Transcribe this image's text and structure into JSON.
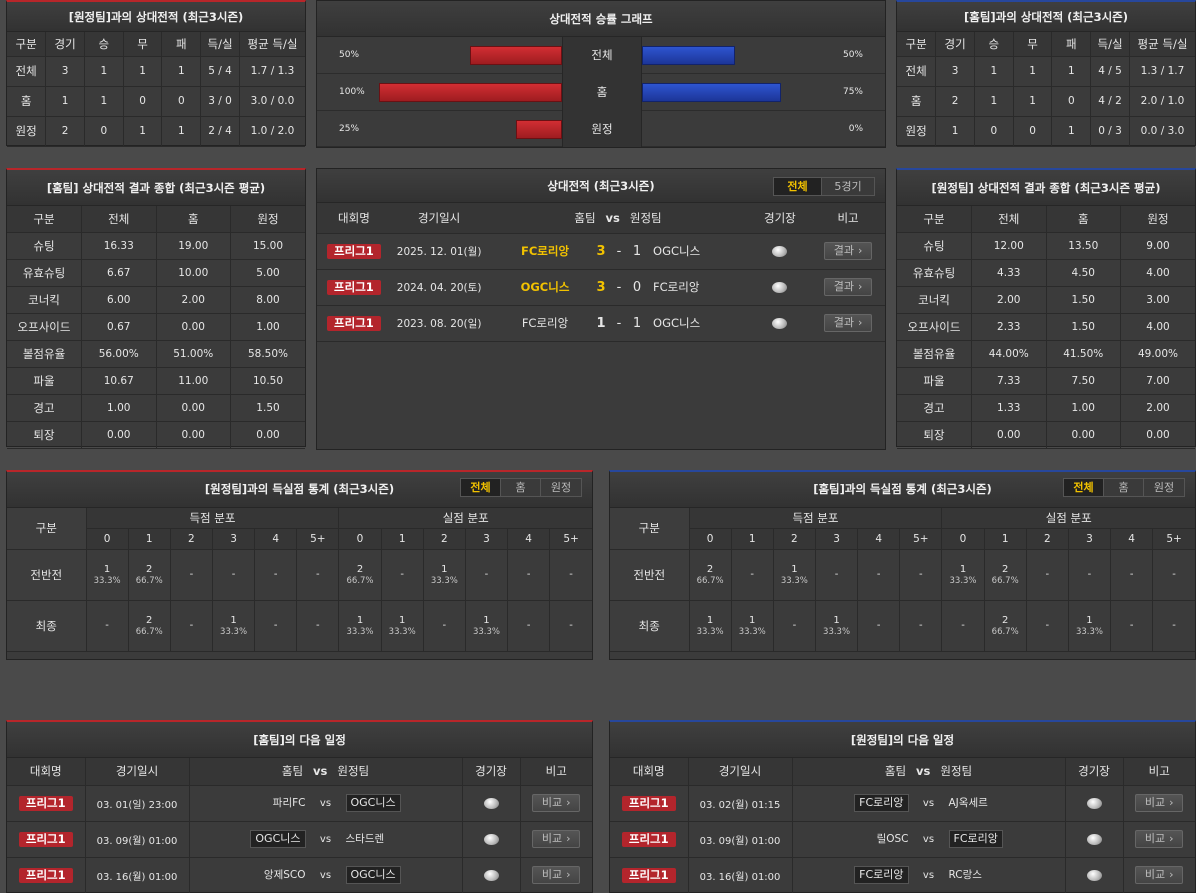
{
  "away_h2h": {
    "title": "[원정팀]과의 상대전적 (최근3시즌)",
    "headers": [
      "구분",
      "경기",
      "승",
      "무",
      "패",
      "득/실",
      "평균 득/실"
    ],
    "rows": [
      [
        "전체",
        "3",
        "1",
        "1",
        "1",
        "5 / 4",
        "1.7 / 1.3"
      ],
      [
        "홈",
        "1",
        "1",
        "0",
        "0",
        "3 / 0",
        "3.0 / 0.0"
      ],
      [
        "원정",
        "2",
        "0",
        "1",
        "1",
        "2 / 4",
        "1.0 / 2.0"
      ]
    ]
  },
  "graph": {
    "title": "상대전적 승률 그래프",
    "rows": [
      {
        "label": "전체",
        "left": "50%",
        "right": "50%",
        "lv": 50,
        "rv": 50
      },
      {
        "label": "홈",
        "left": "100%",
        "right": "75%",
        "lv": 100,
        "rv": 75
      },
      {
        "label": "원정",
        "left": "25%",
        "right": "0%",
        "lv": 25,
        "rv": 0
      }
    ]
  },
  "home_h2h": {
    "title": "[홈팀]과의 상대전적 (최근3시즌)",
    "headers": [
      "구분",
      "경기",
      "승",
      "무",
      "패",
      "득/실",
      "평균 득/실"
    ],
    "rows": [
      [
        "전체",
        "3",
        "1",
        "1",
        "1",
        "4 / 5",
        "1.3 / 1.7"
      ],
      [
        "홈",
        "2",
        "1",
        "1",
        "0",
        "4 / 2",
        "2.0 / 1.0"
      ],
      [
        "원정",
        "1",
        "0",
        "0",
        "1",
        "0 / 3",
        "0.0 / 3.0"
      ]
    ]
  },
  "home_summary": {
    "title": "[홈팀] 상대전적 결과 종합 (최근3시즌 평균)",
    "headers": [
      "구분",
      "전체",
      "홈",
      "원정"
    ],
    "rows": [
      [
        "슈팅",
        "16.33",
        "19.00",
        "15.00"
      ],
      [
        "유효슈팅",
        "6.67",
        "10.00",
        "5.00"
      ],
      [
        "코너킥",
        "6.00",
        "2.00",
        "8.00"
      ],
      [
        "오프사이드",
        "0.67",
        "0.00",
        "1.00"
      ],
      [
        "볼점유율",
        "56.00%",
        "51.00%",
        "58.50%"
      ],
      [
        "파울",
        "10.67",
        "11.00",
        "10.50"
      ],
      [
        "경고",
        "1.00",
        "0.00",
        "1.50"
      ],
      [
        "퇴장",
        "0.00",
        "0.00",
        "0.00"
      ]
    ]
  },
  "h2h_list": {
    "title": "상대전적 (최근3시즌)",
    "tabs": [
      "전체",
      "5경기"
    ],
    "headers": {
      "league": "대회명",
      "date": "경기일시",
      "home": "홈팀",
      "vs": "vs",
      "away": "원정팀",
      "stadium": "경기장",
      "note": "비고"
    },
    "rows": [
      {
        "league": "프리그1",
        "date": "2025. 12. 01(월)",
        "home": "FC로리앙",
        "hs": "3",
        "dash": "-",
        "as": "1",
        "away": "OGC니스",
        "btn": "결과",
        "win": "home"
      },
      {
        "league": "프리그1",
        "date": "2024. 04. 20(토)",
        "home": "OGC니스",
        "hs": "3",
        "dash": "-",
        "as": "0",
        "away": "FC로리앙",
        "btn": "결과",
        "win": "home"
      },
      {
        "league": "프리그1",
        "date": "2023. 08. 20(일)",
        "home": "FC로리앙",
        "hs": "1",
        "dash": "-",
        "as": "1",
        "away": "OGC니스",
        "btn": "결과",
        "win": "none"
      }
    ]
  },
  "away_summary": {
    "title": "[원정팀] 상대전적 결과 종합 (최근3시즌 평균)",
    "headers": [
      "구분",
      "전체",
      "홈",
      "원정"
    ],
    "rows": [
      [
        "슈팅",
        "12.00",
        "13.50",
        "9.00"
      ],
      [
        "유효슈팅",
        "4.33",
        "4.50",
        "4.00"
      ],
      [
        "코너킥",
        "2.00",
        "1.50",
        "3.00"
      ],
      [
        "오프사이드",
        "2.33",
        "1.50",
        "4.00"
      ],
      [
        "볼점유율",
        "44.00%",
        "41.50%",
        "49.00%"
      ],
      [
        "파울",
        "7.33",
        "7.50",
        "7.00"
      ],
      [
        "경고",
        "1.33",
        "1.00",
        "2.00"
      ],
      [
        "퇴장",
        "0.00",
        "0.00",
        "0.00"
      ]
    ]
  },
  "away_goals": {
    "title": "[원정팀]과의 득실점 통계 (최근3시즌)",
    "tabs": [
      "전체",
      "홈",
      "원정"
    ],
    "col_label": "구분",
    "scored": "득점 분포",
    "conceded": "실점 분포",
    "buckets": [
      "0",
      "1",
      "2",
      "3",
      "4",
      "5+"
    ],
    "rows": [
      {
        "label": "전반전",
        "cells": [
          [
            "1",
            "33.3%"
          ],
          [
            "2",
            "66.7%"
          ],
          [
            "-",
            ""
          ],
          [
            "-",
            ""
          ],
          [
            "-",
            ""
          ],
          [
            "-",
            ""
          ],
          [
            "2",
            "66.7%"
          ],
          [
            "-",
            ""
          ],
          [
            "1",
            "33.3%"
          ],
          [
            "-",
            ""
          ],
          [
            "-",
            ""
          ],
          [
            "-",
            ""
          ]
        ]
      },
      {
        "label": "최종",
        "cells": [
          [
            "-",
            ""
          ],
          [
            "2",
            "66.7%"
          ],
          [
            "-",
            ""
          ],
          [
            "1",
            "33.3%"
          ],
          [
            "-",
            ""
          ],
          [
            "-",
            ""
          ],
          [
            "1",
            "33.3%"
          ],
          [
            "1",
            "33.3%"
          ],
          [
            "-",
            ""
          ],
          [
            "1",
            "33.3%"
          ],
          [
            "-",
            ""
          ],
          [
            "-",
            ""
          ]
        ]
      }
    ]
  },
  "home_goals": {
    "title": "[홈팀]과의 득실점 통계 (최근3시즌)",
    "tabs": [
      "전체",
      "홈",
      "원정"
    ],
    "col_label": "구분",
    "scored": "득점 분포",
    "conceded": "실점 분포",
    "buckets": [
      "0",
      "1",
      "2",
      "3",
      "4",
      "5+"
    ],
    "rows": [
      {
        "label": "전반전",
        "cells": [
          [
            "2",
            "66.7%"
          ],
          [
            "-",
            ""
          ],
          [
            "1",
            "33.3%"
          ],
          [
            "-",
            ""
          ],
          [
            "-",
            ""
          ],
          [
            "-",
            ""
          ],
          [
            "1",
            "33.3%"
          ],
          [
            "2",
            "66.7%"
          ],
          [
            "-",
            ""
          ],
          [
            "-",
            ""
          ],
          [
            "-",
            ""
          ],
          [
            "-",
            ""
          ]
        ]
      },
      {
        "label": "최종",
        "cells": [
          [
            "1",
            "33.3%"
          ],
          [
            "1",
            "33.3%"
          ],
          [
            "-",
            ""
          ],
          [
            "1",
            "33.3%"
          ],
          [
            "-",
            ""
          ],
          [
            "-",
            ""
          ],
          [
            "-",
            ""
          ],
          [
            "2",
            "66.7%"
          ],
          [
            "-",
            ""
          ],
          [
            "1",
            "33.3%"
          ],
          [
            "-",
            ""
          ],
          [
            "-",
            ""
          ]
        ]
      }
    ]
  },
  "home_next": {
    "title": "[홈팀]의 다음 일정",
    "headers": {
      "league": "대회명",
      "date": "경기일시",
      "home": "홈팀",
      "vs": "vs",
      "away": "원정팀",
      "stadium": "경기장",
      "note": "비고"
    },
    "rows": [
      {
        "league": "프리그1",
        "date": "03. 01(일) 23:00",
        "home": "파리FC",
        "vs": "vs",
        "away": "OGC니스",
        "btn": "비교",
        "box": "away"
      },
      {
        "league": "프리그1",
        "date": "03. 09(월) 01:00",
        "home": "OGC니스",
        "vs": "vs",
        "away": "스타드렌",
        "btn": "비교",
        "box": "home"
      },
      {
        "league": "프리그1",
        "date": "03. 16(월) 01:00",
        "home": "앙제SCO",
        "vs": "vs",
        "away": "OGC니스",
        "btn": "비교",
        "box": "away"
      }
    ]
  },
  "away_next": {
    "title": "[원정팀]의 다음 일정",
    "headers": {
      "league": "대회명",
      "date": "경기일시",
      "home": "홈팀",
      "vs": "vs",
      "away": "원정팀",
      "stadium": "경기장",
      "note": "비고"
    },
    "rows": [
      {
        "league": "프리그1",
        "date": "03. 02(월) 01:15",
        "home": "FC로리앙",
        "vs": "vs",
        "away": "AJ옥세르",
        "btn": "비교",
        "box": "home"
      },
      {
        "league": "프리그1",
        "date": "03. 09(월) 01:00",
        "home": "릴OSC",
        "vs": "vs",
        "away": "FC로리앙",
        "btn": "비교",
        "box": "away"
      },
      {
        "league": "프리그1",
        "date": "03. 16(월) 01:00",
        "home": "FC로리앙",
        "vs": "vs",
        "away": "RC랑스",
        "btn": "비교",
        "box": "home"
      }
    ]
  }
}
